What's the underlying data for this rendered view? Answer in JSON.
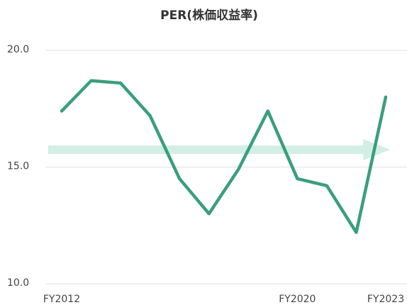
{
  "chart_data": {
    "type": "line",
    "title": "PER(株価収益率)",
    "categories": [
      "FY2012",
      null,
      null,
      null,
      null,
      null,
      null,
      null,
      "FY2020",
      null,
      null,
      "FY2023"
    ],
    "series": [
      {
        "name": "PER",
        "color": "#3a9e7e",
        "values": [
          17.4,
          18.7,
          18.6,
          17.2,
          14.5,
          13.0,
          14.9,
          17.4,
          14.5,
          14.2,
          12.2,
          18.0
        ]
      }
    ],
    "ylim": [
      10,
      20
    ],
    "yticks": [
      {
        "value": 10,
        "label": "10.0"
      },
      {
        "value": 15,
        "label": "15.0"
      },
      {
        "value": 20,
        "label": "20.0"
      }
    ],
    "grid": true
  }
}
